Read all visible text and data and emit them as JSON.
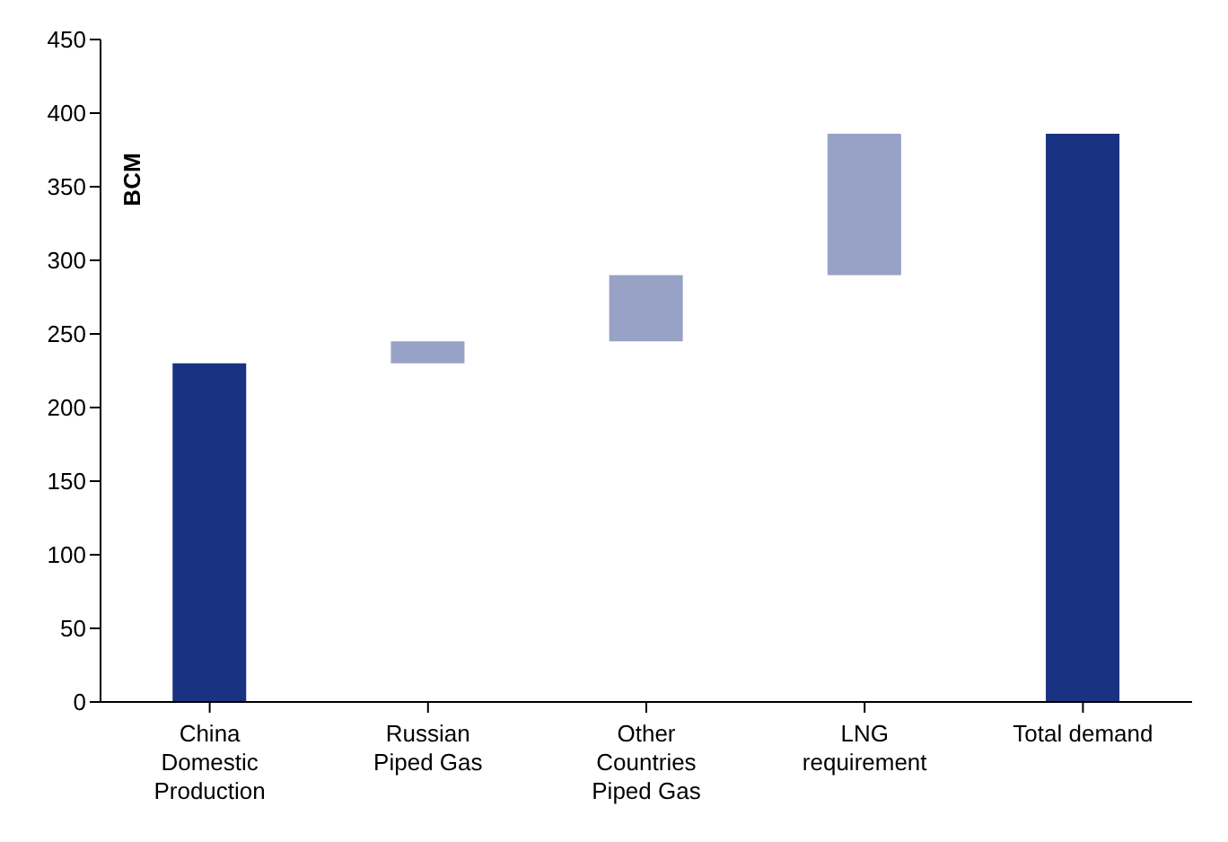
{
  "chart_data": {
    "type": "bar",
    "ylabel": "BCM",
    "categories": [
      "China\nDomestic\nProduction",
      "Russian\nPiped Gas",
      "Other\nCountries\nPiped Gas",
      "LNG\nrequirement",
      "Total demand"
    ],
    "values": [
      230,
      15,
      45,
      96,
      386
    ],
    "base": [
      0,
      230,
      245,
      290,
      0
    ],
    "colors": [
      "#1a3282",
      "#98a2c6",
      "#98a2c6",
      "#98a2c6",
      "#1a3282"
    ],
    "ylim": [
      0,
      450
    ],
    "yticks": [
      0,
      50,
      100,
      150,
      200,
      250,
      300,
      350,
      400,
      450
    ]
  }
}
